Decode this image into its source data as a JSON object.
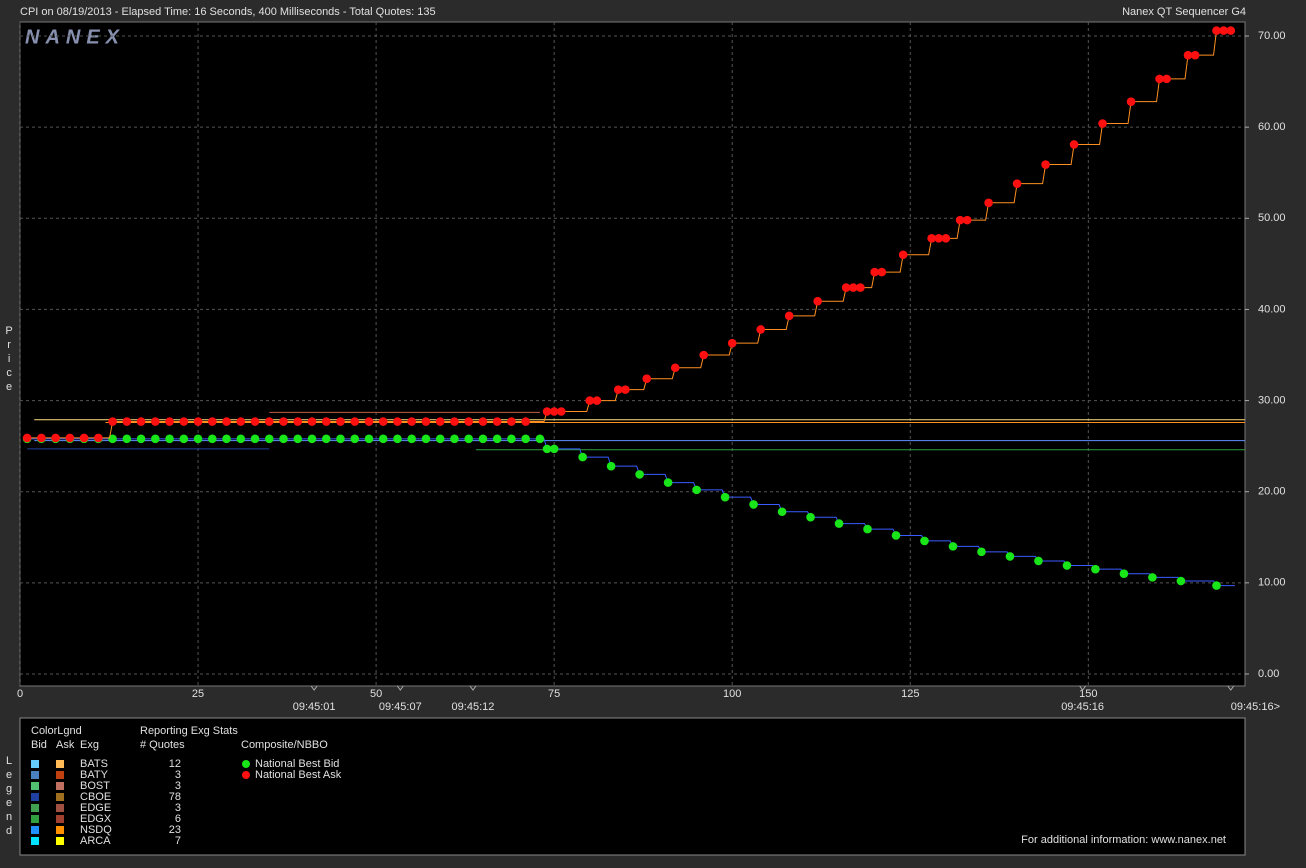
{
  "header": {
    "title": "CPI on 08/19/2013  -  Elapsed Time: 16 Seconds, 400 Milliseconds  -  Total Quotes: 135",
    "product": "Nanex QT Sequencer G4",
    "watermark": "NANEX"
  },
  "chart_data": {
    "type": "scatter",
    "y_axis_label": "Price",
    "xlim": [
      0,
      172
    ],
    "ylim": [
      -1.32,
      71.54
    ],
    "xticks": [
      0,
      25,
      50,
      75,
      100,
      125,
      150
    ],
    "yticks": [
      {
        "value": 0,
        "label": "0.00"
      },
      {
        "value": 10,
        "label": "10.00"
      },
      {
        "value": 20,
        "label": "20.00"
      },
      {
        "value": 30,
        "label": "30.00"
      },
      {
        "value": 40,
        "label": "40.00"
      },
      {
        "value": 50,
        "label": "50.00"
      },
      {
        "value": 60,
        "label": "60.00"
      },
      {
        "value": 70,
        "label": "70.00"
      }
    ],
    "time_ticks": [
      {
        "value": 41.3,
        "label": "09:45:01"
      },
      {
        "value": 53.4,
        "label": "09:45:07"
      },
      {
        "value": 63.6,
        "label": "09:45:12"
      },
      {
        "value": 149.2,
        "label": "09:45:16"
      },
      {
        "value": 170,
        "label": "09:45:16>"
      }
    ],
    "grid": true,
    "series": [
      {
        "name": "National Best Bid",
        "color": "#19e619",
        "line_color": "#3a5cff",
        "x": [
          1,
          3,
          5,
          7,
          9,
          11,
          13,
          15,
          17,
          19,
          21,
          23,
          25,
          27,
          29,
          31,
          33,
          35,
          37,
          39,
          41,
          43,
          45,
          47,
          49,
          51,
          53,
          55,
          57,
          59,
          61,
          63,
          65,
          67,
          69,
          71,
          73,
          74,
          75,
          79,
          83,
          87,
          91,
          95,
          99,
          103,
          107,
          111,
          115,
          119,
          123,
          127,
          131,
          135,
          139,
          143,
          147,
          151,
          155,
          159,
          163,
          168
        ],
        "values": [
          25.8,
          25.8,
          25.8,
          25.8,
          25.8,
          25.8,
          25.8,
          25.8,
          25.8,
          25.8,
          25.8,
          25.8,
          25.8,
          25.8,
          25.8,
          25.8,
          25.8,
          25.8,
          25.8,
          25.8,
          25.8,
          25.8,
          25.8,
          25.8,
          25.8,
          25.8,
          25.8,
          25.8,
          25.8,
          25.8,
          25.8,
          25.8,
          25.8,
          25.8,
          25.8,
          25.8,
          25.8,
          24.7,
          24.7,
          23.8,
          22.8,
          21.9,
          21.0,
          20.2,
          19.4,
          18.6,
          17.8,
          17.2,
          16.5,
          15.9,
          15.2,
          14.6,
          14.0,
          13.4,
          12.9,
          12.4,
          11.9,
          11.5,
          11.0,
          10.6,
          10.2,
          9.7
        ]
      },
      {
        "name": "National Best Ask",
        "color": "#ff1010",
        "line_color": "#ff9020",
        "x": [
          1,
          3,
          5,
          7,
          9,
          11,
          13,
          15,
          17,
          19,
          21,
          23,
          25,
          27,
          29,
          31,
          33,
          35,
          37,
          39,
          41,
          43,
          45,
          47,
          49,
          51,
          53,
          55,
          57,
          59,
          61,
          63,
          65,
          67,
          69,
          71,
          74,
          75,
          76,
          80,
          81,
          84,
          85,
          88,
          92,
          96,
          100,
          104,
          108,
          112,
          116,
          117,
          118,
          120,
          121,
          124,
          128,
          129,
          130,
          132,
          133,
          136,
          140,
          144,
          148,
          152,
          156,
          160,
          161,
          164,
          165,
          168,
          169,
          170
        ],
        "values": [
          25.9,
          25.9,
          25.9,
          25.9,
          25.9,
          25.9,
          27.7,
          27.7,
          27.7,
          27.7,
          27.7,
          27.7,
          27.7,
          27.7,
          27.7,
          27.7,
          27.7,
          27.7,
          27.7,
          27.7,
          27.7,
          27.7,
          27.7,
          27.7,
          27.7,
          27.7,
          27.7,
          27.7,
          27.7,
          27.7,
          27.7,
          27.7,
          27.7,
          27.7,
          27.7,
          27.7,
          28.8,
          28.8,
          28.8,
          30.0,
          30.0,
          31.2,
          31.2,
          32.4,
          33.6,
          35.0,
          36.3,
          37.8,
          39.3,
          40.9,
          42.4,
          42.4,
          42.4,
          44.1,
          44.1,
          46.0,
          47.8,
          47.8,
          47.8,
          49.8,
          49.8,
          51.7,
          53.8,
          55.9,
          58.1,
          60.4,
          62.8,
          65.3,
          65.3,
          67.9,
          67.9,
          70.6,
          70.6,
          70.6
        ]
      }
    ],
    "exchange_lines": [
      {
        "color": "#ffe080",
        "y": 27.9,
        "x": [
          2,
          172
        ]
      },
      {
        "color": "#ff9020",
        "y": 27.6,
        "x": [
          12,
          172
        ]
      },
      {
        "color": "#c06040",
        "y": 28.7,
        "x": [
          35,
          73
        ]
      },
      {
        "color": "#6090ff",
        "y": 25.6,
        "x": [
          2,
          172
        ]
      },
      {
        "color": "#30a040",
        "y": 24.6,
        "x": [
          64,
          172
        ]
      },
      {
        "color": "#2040a0",
        "y": 24.7,
        "x": [
          1,
          35
        ]
      }
    ]
  },
  "legend": {
    "title": "Legend",
    "color_title": "ColorLgnd",
    "headers": [
      "Bid",
      "Ask",
      "Exg"
    ],
    "stats_title": "Reporting Exg Stats",
    "stats_header": "# Quotes",
    "composite_title": "Composite/NBBO",
    "rows": [
      {
        "exchange": "BATS",
        "bid_color": "#66ccff",
        "ask_color": "#ffbb55",
        "quotes": 12
      },
      {
        "exchange": "BATY",
        "bid_color": "#4a80c0",
        "ask_color": "#c04010",
        "quotes": 3
      },
      {
        "exchange": "BOST",
        "bid_color": "#50c070",
        "ask_color": "#c07060",
        "quotes": 3
      },
      {
        "exchange": "CBOE",
        "bid_color": "#2040a0",
        "ask_color": "#a07020",
        "quotes": 78
      },
      {
        "exchange": "EDGE",
        "bid_color": "#40a050",
        "ask_color": "#a05040",
        "quotes": 3
      },
      {
        "exchange": "EDGX",
        "bid_color": "#30a040",
        "ask_color": "#a04030",
        "quotes": 6
      },
      {
        "exchange": "NSDQ",
        "bid_color": "#2090ff",
        "ask_color": "#ff9000",
        "quotes": 23
      },
      {
        "exchange": "ARCA",
        "bid_color": "#00e0ff",
        "ask_color": "#ffff00",
        "quotes": 7
      }
    ],
    "footer": "For additional information: www.nanex.net"
  }
}
